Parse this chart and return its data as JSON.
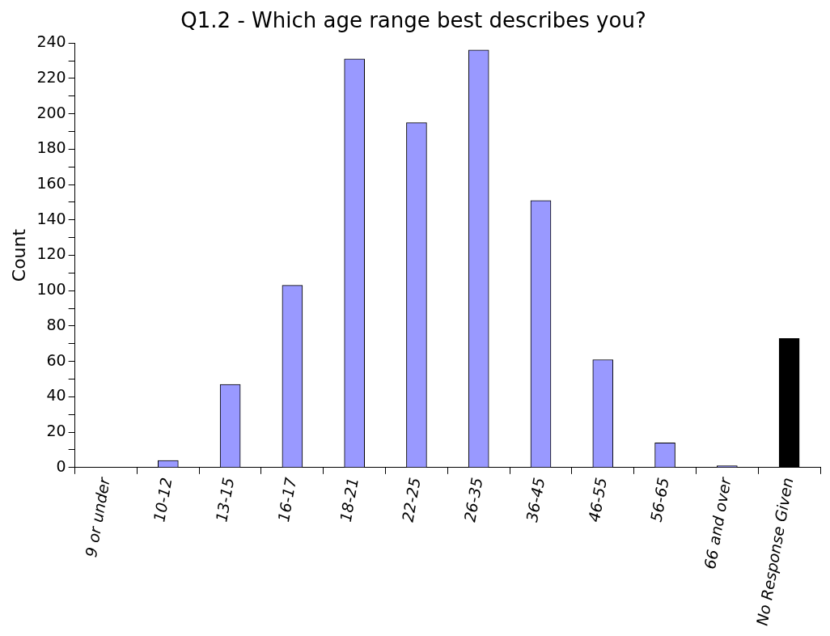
{
  "chart_data": {
    "type": "bar",
    "title": "Q1.2 - Which age range best describes you?",
    "ylabel": "Count",
    "categories": [
      "9 or under",
      "10-12",
      "13-15",
      "16-17",
      "18-21",
      "22-25",
      "26-35",
      "36-45",
      "46-55",
      "56-65",
      "66 and over",
      "No Response Given"
    ],
    "values": [
      0,
      4,
      47,
      103,
      231,
      195,
      236,
      151,
      61,
      14,
      1,
      73
    ],
    "colors": [
      "#9999ff",
      "#9999ff",
      "#9999ff",
      "#9999ff",
      "#9999ff",
      "#9999ff",
      "#9999ff",
      "#9999ff",
      "#9999ff",
      "#9999ff",
      "#9999ff",
      "#000000"
    ],
    "ylim": [
      0,
      240
    ],
    "yticks": [
      0,
      {
        "value": 10,
        "label": null
      },
      20,
      {
        "value": 30,
        "label": null
      },
      40,
      {
        "value": 50,
        "label": null
      },
      60,
      {
        "value": 70,
        "label": null
      },
      80,
      {
        "value": 90,
        "label": null
      },
      100,
      {
        "value": 110,
        "label": null
      },
      120,
      {
        "value": 130,
        "label": null
      },
      140,
      {
        "value": 150,
        "label": null
      },
      160,
      {
        "value": 170,
        "label": null
      },
      180,
      {
        "value": 190,
        "label": null
      },
      200,
      {
        "value": 210,
        "label": null
      },
      220,
      {
        "value": 230,
        "label": null
      },
      240
    ],
    "grid": false,
    "legend": false
  }
}
